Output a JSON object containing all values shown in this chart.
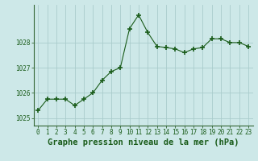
{
  "x": [
    0,
    1,
    2,
    3,
    4,
    5,
    6,
    7,
    8,
    9,
    10,
    11,
    12,
    13,
    14,
    15,
    16,
    17,
    18,
    19,
    20,
    21,
    22,
    23
  ],
  "y": [
    1025.3,
    1025.75,
    1025.75,
    1025.75,
    1025.5,
    1025.75,
    1026.0,
    1026.5,
    1026.85,
    1027.0,
    1028.55,
    1029.1,
    1028.4,
    1027.85,
    1027.8,
    1027.75,
    1027.6,
    1027.75,
    1027.8,
    1028.15,
    1028.15,
    1028.0,
    1028.0,
    1027.85
  ],
  "line_color": "#1a5c1a",
  "marker": "+",
  "marker_size": 4,
  "marker_linewidth": 1.2,
  "bg_color": "#cde8e8",
  "grid_color": "#aacccc",
  "xlabel": "Graphe pression niveau de la mer (hPa)",
  "xlabel_fontsize": 7.5,
  "yticks": [
    1025,
    1026,
    1027,
    1028
  ],
  "ylim": [
    1024.7,
    1029.5
  ],
  "xlim": [
    -0.5,
    23.5
  ],
  "xticks": [
    0,
    1,
    2,
    3,
    4,
    5,
    6,
    7,
    8,
    9,
    10,
    11,
    12,
    13,
    14,
    15,
    16,
    17,
    18,
    19,
    20,
    21,
    22,
    23
  ],
  "tick_fontsize": 5.5,
  "spine_color": "#336633",
  "text_color": "#1a5c1a"
}
